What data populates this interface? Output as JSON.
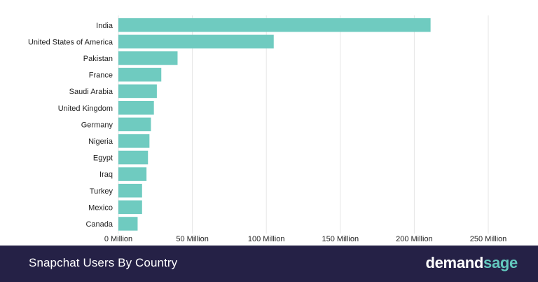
{
  "chart_data": {
    "type": "bar",
    "orientation": "horizontal",
    "categories": [
      "India",
      "United States of America",
      "Pakistan",
      "France",
      "Saudi Arabia",
      "United Kingdom",
      "Germany",
      "Nigeria",
      "Egypt",
      "Iraq",
      "Turkey",
      "Mexico",
      "Canada"
    ],
    "values": [
      211,
      105,
      40,
      29,
      26,
      24,
      22,
      21,
      20,
      19,
      16,
      16,
      13
    ],
    "unit": "Million",
    "xlim": [
      0,
      250
    ],
    "x_ticks": [
      0,
      50,
      100,
      150,
      200,
      250
    ],
    "x_tick_labels": [
      "0 Million",
      "50 Million",
      "100 Million",
      "150 Million",
      "200 Million",
      "250 Million"
    ],
    "grid": "vertical",
    "bar_color": "#6fcbc0",
    "title": "",
    "xlabel": "",
    "ylabel": ""
  },
  "footer": {
    "title": "Snapchat Users By Country",
    "brand_part1": "demand",
    "brand_part2": "sage",
    "background": "#252146",
    "brand_accent": "#63c8be"
  }
}
